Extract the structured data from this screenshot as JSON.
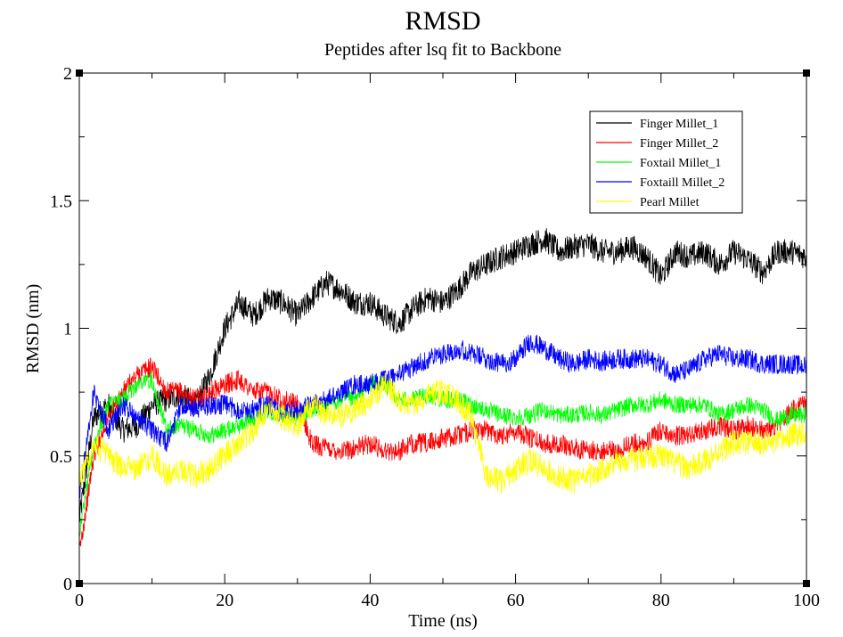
{
  "chart_data": {
    "type": "line",
    "title": "RMSD",
    "subtitle": "Peptides after lsq fit to Backbone",
    "xlabel": "Time (ns)",
    "ylabel": "RMSD (nm)",
    "xlim": [
      0,
      100
    ],
    "ylim": [
      0,
      2
    ],
    "xticks": [
      0,
      20,
      40,
      60,
      80,
      100
    ],
    "yticks": [
      0,
      0.5,
      1,
      1.5,
      2
    ],
    "grid": false,
    "legend_position": "top-right",
    "series": [
      {
        "name": "Finger Millet_1",
        "color": "#000000",
        "x": [
          0,
          2,
          4,
          6,
          8,
          10,
          12,
          14,
          16,
          18,
          20,
          22,
          24,
          26,
          28,
          30,
          32,
          34,
          36,
          38,
          40,
          42,
          44,
          46,
          48,
          50,
          52,
          54,
          56,
          58,
          60,
          62,
          64,
          66,
          68,
          70,
          72,
          74,
          76,
          78,
          80,
          82,
          84,
          86,
          88,
          90,
          92,
          94,
          96,
          98,
          100
        ],
        "y": [
          0.25,
          0.65,
          0.7,
          0.6,
          0.62,
          0.7,
          0.72,
          0.74,
          0.7,
          0.82,
          1.0,
          1.1,
          1.05,
          1.12,
          1.1,
          1.05,
          1.12,
          1.18,
          1.15,
          1.1,
          1.1,
          1.05,
          1.02,
          1.08,
          1.12,
          1.1,
          1.15,
          1.22,
          1.25,
          1.28,
          1.3,
          1.33,
          1.35,
          1.3,
          1.32,
          1.33,
          1.3,
          1.3,
          1.32,
          1.28,
          1.2,
          1.3,
          1.28,
          1.3,
          1.25,
          1.3,
          1.27,
          1.22,
          1.3,
          1.3,
          1.28
        ],
        "noise": 0.05
      },
      {
        "name": "Finger Millet_2",
        "color": "#ff0000",
        "x": [
          0,
          2,
          4,
          6,
          8,
          10,
          12,
          14,
          16,
          18,
          20,
          22,
          24,
          26,
          28,
          30,
          32,
          34,
          36,
          38,
          40,
          42,
          44,
          46,
          48,
          50,
          52,
          54,
          56,
          58,
          60,
          62,
          64,
          66,
          68,
          70,
          72,
          74,
          76,
          78,
          80,
          82,
          84,
          86,
          88,
          90,
          92,
          94,
          96,
          98,
          100
        ],
        "y": [
          0.12,
          0.5,
          0.65,
          0.75,
          0.82,
          0.85,
          0.75,
          0.75,
          0.72,
          0.75,
          0.78,
          0.8,
          0.75,
          0.75,
          0.72,
          0.7,
          0.55,
          0.53,
          0.52,
          0.53,
          0.55,
          0.52,
          0.52,
          0.55,
          0.55,
          0.57,
          0.58,
          0.6,
          0.6,
          0.58,
          0.6,
          0.57,
          0.55,
          0.55,
          0.53,
          0.52,
          0.52,
          0.52,
          0.55,
          0.55,
          0.6,
          0.58,
          0.58,
          0.6,
          0.62,
          0.6,
          0.62,
          0.6,
          0.62,
          0.68,
          0.7
        ],
        "noise": 0.04
      },
      {
        "name": "Foxtail Millet_1",
        "color": "#00ff00",
        "x": [
          0,
          2,
          4,
          6,
          8,
          10,
          12,
          14,
          16,
          18,
          20,
          22,
          24,
          26,
          28,
          30,
          32,
          34,
          36,
          38,
          40,
          42,
          44,
          46,
          48,
          50,
          52,
          54,
          56,
          58,
          60,
          62,
          64,
          66,
          68,
          70,
          72,
          74,
          76,
          78,
          80,
          82,
          84,
          86,
          88,
          90,
          92,
          94,
          96,
          98,
          100
        ],
        "y": [
          0.2,
          0.55,
          0.7,
          0.72,
          0.78,
          0.8,
          0.6,
          0.62,
          0.6,
          0.58,
          0.6,
          0.62,
          0.65,
          0.68,
          0.66,
          0.65,
          0.68,
          0.7,
          0.72,
          0.72,
          0.78,
          0.78,
          0.72,
          0.72,
          0.74,
          0.72,
          0.72,
          0.7,
          0.68,
          0.66,
          0.65,
          0.66,
          0.68,
          0.66,
          0.66,
          0.67,
          0.66,
          0.68,
          0.7,
          0.7,
          0.72,
          0.7,
          0.7,
          0.7,
          0.66,
          0.68,
          0.7,
          0.68,
          0.64,
          0.66,
          0.66
        ],
        "noise": 0.035
      },
      {
        "name": "Foxtaill Millet_2",
        "color": "#0000ff",
        "x": [
          0,
          2,
          4,
          6,
          8,
          10,
          12,
          14,
          16,
          18,
          20,
          22,
          24,
          26,
          28,
          30,
          32,
          34,
          36,
          38,
          40,
          42,
          44,
          46,
          48,
          50,
          52,
          54,
          56,
          58,
          60,
          62,
          64,
          66,
          68,
          70,
          72,
          74,
          76,
          78,
          80,
          82,
          84,
          86,
          88,
          90,
          92,
          94,
          96,
          98,
          100
        ],
        "y": [
          0.35,
          0.75,
          0.6,
          0.7,
          0.65,
          0.6,
          0.55,
          0.7,
          0.68,
          0.7,
          0.7,
          0.68,
          0.68,
          0.7,
          0.66,
          0.68,
          0.7,
          0.72,
          0.75,
          0.78,
          0.78,
          0.8,
          0.82,
          0.85,
          0.88,
          0.9,
          0.92,
          0.9,
          0.88,
          0.86,
          0.88,
          0.95,
          0.92,
          0.88,
          0.86,
          0.88,
          0.87,
          0.88,
          0.88,
          0.88,
          0.86,
          0.82,
          0.84,
          0.88,
          0.9,
          0.88,
          0.88,
          0.86,
          0.86,
          0.86,
          0.85
        ],
        "noise": 0.04
      },
      {
        "name": "Pearl Millet",
        "color": "#ffff00",
        "x": [
          0,
          2,
          4,
          6,
          8,
          10,
          12,
          14,
          16,
          18,
          20,
          22,
          24,
          26,
          28,
          30,
          32,
          34,
          36,
          38,
          40,
          42,
          44,
          46,
          48,
          50,
          52,
          54,
          56,
          58,
          60,
          62,
          64,
          66,
          68,
          70,
          72,
          74,
          76,
          78,
          80,
          82,
          84,
          86,
          88,
          90,
          92,
          94,
          96,
          98,
          100
        ],
        "y": [
          0.4,
          0.55,
          0.5,
          0.45,
          0.45,
          0.5,
          0.42,
          0.45,
          0.42,
          0.45,
          0.5,
          0.55,
          0.6,
          0.7,
          0.65,
          0.62,
          0.7,
          0.66,
          0.66,
          0.68,
          0.72,
          0.78,
          0.72,
          0.7,
          0.75,
          0.75,
          0.72,
          0.65,
          0.42,
          0.4,
          0.45,
          0.48,
          0.45,
          0.42,
          0.4,
          0.42,
          0.45,
          0.48,
          0.48,
          0.5,
          0.5,
          0.47,
          0.45,
          0.48,
          0.52,
          0.55,
          0.55,
          0.55,
          0.55,
          0.58,
          0.6
        ],
        "noise": 0.05
      }
    ]
  }
}
